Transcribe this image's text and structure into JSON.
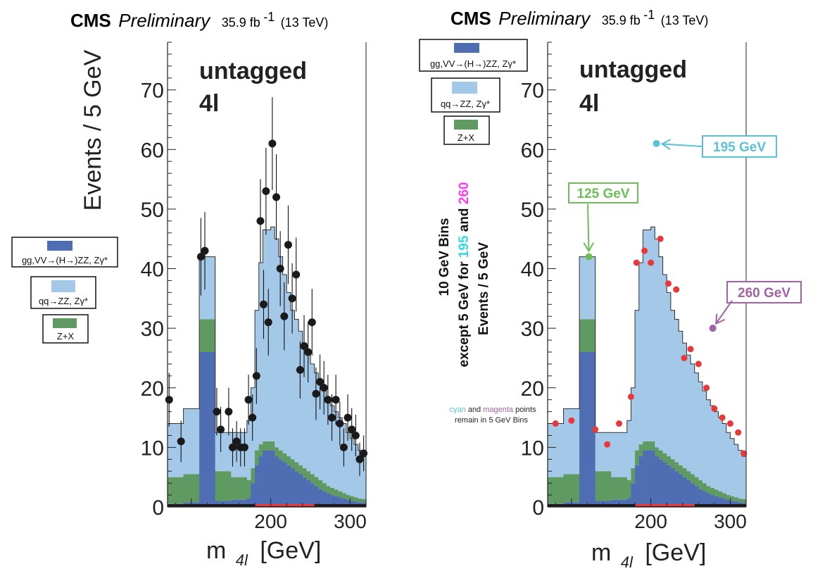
{
  "colors": {
    "ggH": "#4f6db3",
    "qqZZ": "#a4c9e8",
    "ZX": "#5f9a63",
    "data": "#1a1a1a",
    "data_rebinned": "#e8383a",
    "cyan": "#5bc2d4",
    "magenta": "#a162a6",
    "green": "#6cbf57"
  },
  "chart_data": [
    {
      "type": "bar",
      "header": {
        "experiment": "CMS",
        "status": "Preliminary",
        "lumi_base": "35.9 fb",
        "lumi_exp": "-1",
        "energy": "(13 TeV)"
      },
      "category": "untagged",
      "channel": "4l",
      "xlabel_main": "m",
      "xlabel_sub": "4l",
      "xlabel_unit": "[GeV]",
      "ylabel": "Events / 5 GeV",
      "xlim": [
        70,
        320
      ],
      "ylim": [
        0,
        78
      ],
      "xticks": [
        200,
        300
      ],
      "yticks": [
        0,
        10,
        20,
        30,
        40,
        50,
        60,
        70
      ],
      "bin_width": 5,
      "legend": [
        {
          "key": "ggH",
          "label": "gg,VV→(H→)ZZ, Zγ*"
        },
        {
          "key": "qqZZ",
          "label": "qq→ZZ, Zγ*"
        },
        {
          "key": "ZX",
          "label": "Z+X"
        }
      ],
      "stack_bins": [
        {
          "lo": 70,
          "ggH": 0.5,
          "ZX": 5,
          "qqZZ": 14
        },
        {
          "lo": 90,
          "ggH": 0.8,
          "ZX": 5.5,
          "qqZZ": 16.5
        },
        {
          "lo": 110,
          "ggH": 26,
          "ZX": 31.5,
          "qqZZ": 42
        },
        {
          "lo": 130,
          "ggH": 1,
          "ZX": 6,
          "qqZZ": 12.5
        },
        {
          "lo": 150,
          "ggH": 1.2,
          "ZX": 5,
          "qqZZ": 12.5
        },
        {
          "lo": 170,
          "ggH": 1.5,
          "ZX": 4.5,
          "qqZZ": 14.5
        },
        {
          "lo": 175,
          "ggH": 4,
          "ZX": 6.5,
          "qqZZ": 20
        },
        {
          "lo": 180,
          "ggH": 7,
          "ZX": 9.5,
          "qqZZ": 33
        },
        {
          "lo": 185,
          "ggH": 8.5,
          "ZX": 10.5,
          "qqZZ": 41
        },
        {
          "lo": 190,
          "ggH": 9.5,
          "ZX": 11,
          "qqZZ": 46.5
        },
        {
          "lo": 200,
          "ggH": 9.5,
          "ZX": 11,
          "qqZZ": 47
        },
        {
          "lo": 205,
          "ggH": 8.5,
          "ZX": 10,
          "qqZZ": 45
        },
        {
          "lo": 210,
          "ggH": 8,
          "ZX": 9.5,
          "qqZZ": 42
        },
        {
          "lo": 215,
          "ggH": 7.5,
          "ZX": 9,
          "qqZZ": 39
        },
        {
          "lo": 220,
          "ggH": 7,
          "ZX": 8.5,
          "qqZZ": 36
        },
        {
          "lo": 225,
          "ggH": 6.5,
          "ZX": 8,
          "qqZZ": 33
        },
        {
          "lo": 230,
          "ggH": 6,
          "ZX": 7.5,
          "qqZZ": 31.5
        },
        {
          "lo": 235,
          "ggH": 5.5,
          "ZX": 7,
          "qqZZ": 29.5
        },
        {
          "lo": 240,
          "ggH": 5,
          "ZX": 6.5,
          "qqZZ": 27.5
        },
        {
          "lo": 245,
          "ggH": 4.5,
          "ZX": 6,
          "qqZZ": 25.5
        },
        {
          "lo": 250,
          "ggH": 4,
          "ZX": 5.5,
          "qqZZ": 24
        },
        {
          "lo": 255,
          "ggH": 3.5,
          "ZX": 5,
          "qqZZ": 22.5
        },
        {
          "lo": 260,
          "ggH": 3,
          "ZX": 4.5,
          "qqZZ": 21
        },
        {
          "lo": 265,
          "ggH": 2.6,
          "ZX": 4,
          "qqZZ": 19.5
        },
        {
          "lo": 270,
          "ggH": 2.3,
          "ZX": 3.5,
          "qqZZ": 18
        },
        {
          "lo": 275,
          "ggH": 2,
          "ZX": 3.2,
          "qqZZ": 17
        },
        {
          "lo": 280,
          "ggH": 1.8,
          "ZX": 2.9,
          "qqZZ": 16
        },
        {
          "lo": 285,
          "ggH": 1.6,
          "ZX": 2.6,
          "qqZZ": 15
        },
        {
          "lo": 290,
          "ggH": 1.4,
          "ZX": 2.3,
          "qqZZ": 14
        },
        {
          "lo": 295,
          "ggH": 1.2,
          "ZX": 2,
          "qqZZ": 12.5
        },
        {
          "lo": 300,
          "ggH": 1,
          "ZX": 1.8,
          "qqZZ": 11.5
        },
        {
          "lo": 305,
          "ggH": 0.9,
          "ZX": 1.6,
          "qqZZ": 10.5
        },
        {
          "lo": 310,
          "ggH": 0.8,
          "ZX": 1.4,
          "qqZZ": 9.5
        },
        {
          "lo": 315,
          "ggH": 0.7,
          "ZX": 1.3,
          "qqZZ": 8.5
        }
      ],
      "data_points": [
        {
          "x": 72,
          "y": 18,
          "err": 4.5
        },
        {
          "x": 87,
          "y": 11,
          "err": 3.5
        },
        {
          "x": 112,
          "y": 42,
          "err": 6.5
        },
        {
          "x": 117,
          "y": 43,
          "err": 6.5
        },
        {
          "x": 132,
          "y": 16,
          "err": 4
        },
        {
          "x": 137,
          "y": 13,
          "err": 3.8
        },
        {
          "x": 147,
          "y": 16,
          "err": 4
        },
        {
          "x": 152,
          "y": 10,
          "err": 3.2
        },
        {
          "x": 157,
          "y": 11,
          "err": 3.4
        },
        {
          "x": 162,
          "y": 10,
          "err": 3.2
        },
        {
          "x": 167,
          "y": 10,
          "err": 3.2
        },
        {
          "x": 172,
          "y": 18,
          "err": 4.2
        },
        {
          "x": 177,
          "y": 15,
          "err": 3.9
        },
        {
          "x": 182,
          "y": 22,
          "err": 4.7
        },
        {
          "x": 187,
          "y": 48,
          "err": 7
        },
        {
          "x": 191,
          "y": 34,
          "err": 5.8
        },
        {
          "x": 194,
          "y": 53,
          "err": 7.3
        },
        {
          "x": 197,
          "y": 31,
          "err": 5.6
        },
        {
          "x": 202,
          "y": 61,
          "err": 7.8
        },
        {
          "x": 207,
          "y": 52,
          "err": 7.2
        },
        {
          "x": 212,
          "y": 40,
          "err": 6.3
        },
        {
          "x": 217,
          "y": 32,
          "err": 5.7
        },
        {
          "x": 222,
          "y": 44,
          "err": 6.6
        },
        {
          "x": 227,
          "y": 35,
          "err": 5.9
        },
        {
          "x": 232,
          "y": 39,
          "err": 6.2
        },
        {
          "x": 237,
          "y": 23,
          "err": 4.8
        },
        {
          "x": 242,
          "y": 27,
          "err": 5.2
        },
        {
          "x": 247,
          "y": 26,
          "err": 5.1
        },
        {
          "x": 252,
          "y": 31,
          "err": 5.6
        },
        {
          "x": 257,
          "y": 19,
          "err": 4.4
        },
        {
          "x": 262,
          "y": 21,
          "err": 4.6
        },
        {
          "x": 267,
          "y": 20,
          "err": 4.5
        },
        {
          "x": 272,
          "y": 18,
          "err": 4.2
        },
        {
          "x": 277,
          "y": 15,
          "err": 3.9
        },
        {
          "x": 282,
          "y": 18,
          "err": 4.2
        },
        {
          "x": 287,
          "y": 14,
          "err": 3.7
        },
        {
          "x": 292,
          "y": 10,
          "err": 3.2
        },
        {
          "x": 297,
          "y": 15,
          "err": 3.9
        },
        {
          "x": 302,
          "y": 13,
          "err": 3.6
        },
        {
          "x": 307,
          "y": 12,
          "err": 3.5
        },
        {
          "x": 312,
          "y": 8,
          "err": 2.8
        },
        {
          "x": 317,
          "y": 9,
          "err": 3
        }
      ]
    },
    {
      "type": "bar",
      "header": {
        "experiment": "CMS",
        "status": "Preliminary",
        "lumi_base": "35.9 fb",
        "lumi_exp": "-1",
        "energy": "(13 TeV)"
      },
      "category": "untagged",
      "channel": "4l",
      "xlabel_main": "m",
      "xlabel_sub": "4l",
      "xlabel_unit": "[GeV]",
      "ylabel_lines": [
        "10 GeV Bins",
        "except 5 GeV for ",
        "195",
        " and ",
        "260",
        "Events / 5 GeV"
      ],
      "note_lines": [
        "cyan",
        " and ",
        "magenta",
        " points",
        "remain in 5 GeV Bins"
      ],
      "xlim": [
        70,
        320
      ],
      "ylim": [
        0,
        78
      ],
      "xticks": [
        200,
        300
      ],
      "yticks": [
        0,
        10,
        20,
        30,
        40,
        50,
        60,
        70
      ],
      "legend": [
        {
          "key": "ggH",
          "label": "gg,VV→(H→)ZZ, Zγ*"
        },
        {
          "key": "qqZZ",
          "label": "qq→ZZ, Zγ*"
        },
        {
          "key": "ZX",
          "label": "Z+X"
        }
      ],
      "rebinned_points": [
        {
          "x": 80,
          "y": 14
        },
        {
          "x": 100,
          "y": 14.5
        },
        {
          "x": 130,
          "y": 13
        },
        {
          "x": 145,
          "y": 10.5
        },
        {
          "x": 160,
          "y": 14
        },
        {
          "x": 175,
          "y": 18.5
        },
        {
          "x": 182,
          "y": 41
        },
        {
          "x": 192,
          "y": 43
        },
        {
          "x": 200,
          "y": 41
        },
        {
          "x": 212,
          "y": 45
        },
        {
          "x": 222,
          "y": 37.5
        },
        {
          "x": 232,
          "y": 36.5
        },
        {
          "x": 242,
          "y": 25
        },
        {
          "x": 250,
          "y": 26.5
        },
        {
          "x": 260,
          "y": 24
        },
        {
          "x": 270,
          "y": 20
        },
        {
          "x": 280,
          "y": 16.5
        },
        {
          "x": 290,
          "y": 15
        },
        {
          "x": 300,
          "y": 14
        },
        {
          "x": 310,
          "y": 12.5
        },
        {
          "x": 317,
          "y": 9
        }
      ],
      "highlight_points": [
        {
          "x": 122,
          "y": 42,
          "color_key": "green",
          "label": "125 GeV"
        },
        {
          "x": 207,
          "y": 61,
          "color_key": "cyan",
          "label": "195 GeV"
        },
        {
          "x": 278,
          "y": 30,
          "color_key": "magenta",
          "label": "260 GeV"
        }
      ]
    }
  ]
}
